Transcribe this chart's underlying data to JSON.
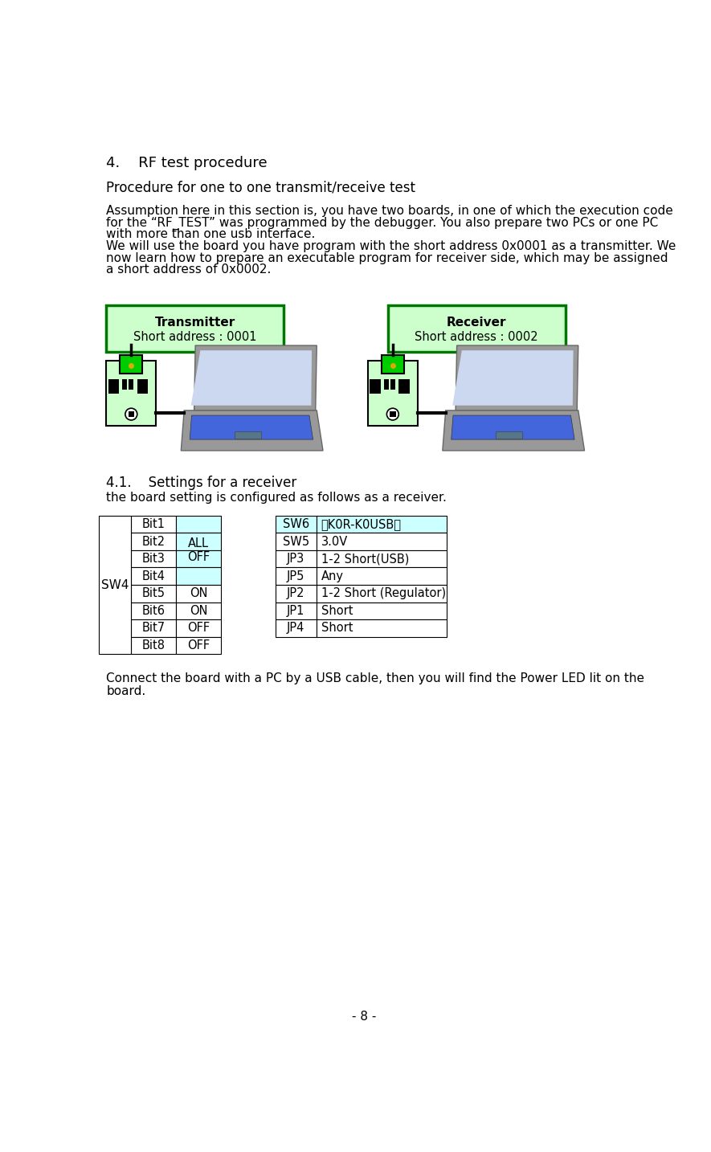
{
  "title": "4.    RF test procedure",
  "subtitle": "Procedure for one to one transmit/receive test",
  "body_line1": "Assumption here in this section is, you have two boards, in one of which the execution code",
  "body_line2": "for the “RF_TEST” was programmed by the debugger. You also prepare two PCs or one PC",
  "body_line3": "with more than one usb interface.",
  "body_line4": "We will use the board you have program with the short address 0x0001 as a transmitter. We",
  "body_line5": "now learn how to prepare an executable program for receiver side, which may be assigned",
  "body_line6": "a short address of 0x0002.",
  "box1_title": "Transmitter",
  "box1_sub": "Short address : 0001",
  "box2_title": "Receiver",
  "box2_sub": "Short address : 0002",
  "section_title": "4.1.    Settings for a receiver",
  "section_sub": "the board setting is configured as follows as a receiver.",
  "sw4_label": "SW4",
  "table1_rows": [
    [
      "Bit1",
      ""
    ],
    [
      "Bit2",
      "ALL\nOFF"
    ],
    [
      "Bit3",
      ""
    ],
    [
      "Bit4",
      ""
    ],
    [
      "Bit5",
      "ON"
    ],
    [
      "Bit6",
      "ON"
    ],
    [
      "Bit7",
      "OFF"
    ],
    [
      "Bit8",
      "OFF"
    ]
  ],
  "table2_rows": [
    [
      "SW6",
      "『K0R-K0USB』"
    ],
    [
      "SW5",
      "3.0V"
    ],
    [
      "JP3",
      "1-2 Short(USB)"
    ],
    [
      "JP5",
      "Any"
    ],
    [
      "JP2",
      "1-2 Short (Regulator)"
    ],
    [
      "JP1",
      "Short"
    ],
    [
      "JP4",
      "Short"
    ]
  ],
  "footer_text1": "Connect the board with a PC by a USB cable, then you will find the Power LED lit on the",
  "footer_text2": "board.",
  "page_number": "- 8 -",
  "bg_color": "#ffffff",
  "box_fill": "#ccffcc",
  "box_border": "#007700",
  "table_blue_fill": "#ccffff",
  "board_fill": "#ccffcc",
  "board_green": "#00cc00",
  "laptop_gray": "#999999",
  "laptop_darkgray": "#666666",
  "laptop_blue": "#4466dd",
  "laptop_screen": "#ccd8f0"
}
